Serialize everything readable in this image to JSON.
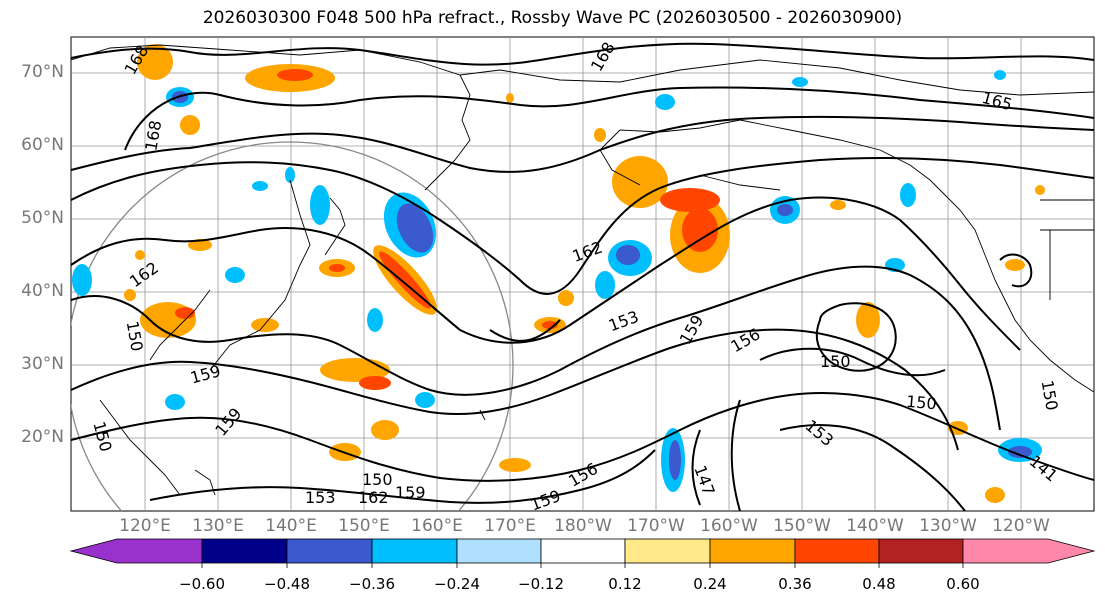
{
  "title": "2026030300 F048 500 hPa refract., Rossby Wave PC (2026030500 - 2026030900)",
  "lat_labels": [
    "70°N",
    "60°N",
    "50°N",
    "40°N",
    "30°N",
    "20°N"
  ],
  "lon_labels": [
    "120°E",
    "130°E",
    "140°E",
    "150°E",
    "160°E",
    "170°E",
    "180°W",
    "170°W",
    "160°W",
    "150°W",
    "140°W",
    "130°W",
    "120°W"
  ],
  "contour_labels": [
    "168",
    "168",
    "168",
    "165",
    "162",
    "162",
    "159",
    "159",
    "159",
    "156",
    "153",
    "150",
    "150",
    "150",
    "153",
    "147",
    "141",
    "150",
    "153",
    "150",
    "162",
    "156",
    "159",
    "159",
    "150"
  ],
  "colorbar": {
    "tick_labels": [
      "−0.60",
      "−0.48",
      "−0.36",
      "−0.24",
      "−0.12",
      "0.12",
      "0.24",
      "0.36",
      "0.48",
      "0.60"
    ],
    "colors": [
      "#9932cc",
      "#00008b",
      "#3a5acd",
      "#00bfff",
      "#b0e0ff",
      "#ffffff",
      "#ffe98a",
      "#ffa500",
      "#ff4500",
      "#b22222",
      "#ff88aa"
    ]
  },
  "colors": {
    "grid": "#999999",
    "coast": "#000000",
    "contour": "#000000",
    "label_gray": "#777777"
  }
}
